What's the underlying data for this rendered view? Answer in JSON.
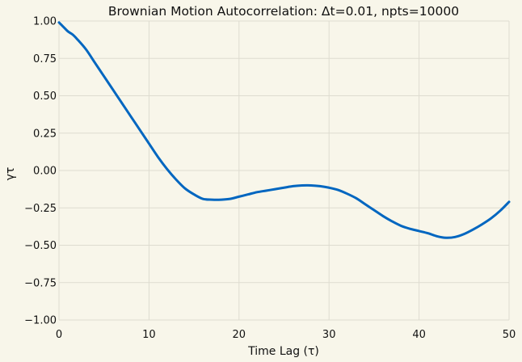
{
  "chart_data": {
    "type": "line",
    "title": "Brownian Motion Autocorrelation: Δt=0.01, npts=10000",
    "xlabel": "Time Lag (τ)",
    "ylabel": "γτ",
    "xlim": [
      0,
      50
    ],
    "ylim": [
      -1.0,
      1.0
    ],
    "x_ticks": [
      0,
      10,
      20,
      30,
      40,
      50
    ],
    "x_tick_labels": [
      "0",
      "10",
      "20",
      "30",
      "40",
      "50"
    ],
    "y_ticks": [
      1.0,
      0.75,
      0.5,
      0.25,
      0.0,
      -0.25,
      -0.5,
      -0.75,
      -1.0
    ],
    "y_tick_labels": [
      "1.00",
      "0.75",
      "0.50",
      "0.25",
      "0.00",
      "−0.25",
      "−0.50",
      "−0.75",
      "−1.00"
    ],
    "grid": true,
    "legend": "none",
    "colors": {
      "background": "#f8f6ea",
      "grid": "#dedcd0",
      "line": "#0066c0"
    },
    "series": [
      {
        "x": [
          0,
          0.5,
          1,
          1.5,
          2,
          3,
          4,
          5,
          6,
          7,
          8,
          9,
          10,
          11,
          12,
          13,
          14,
          15,
          16,
          17,
          18,
          19,
          20,
          21,
          22,
          23,
          24,
          25,
          26,
          27,
          28,
          29,
          30,
          31,
          32,
          33,
          34,
          35,
          36,
          37,
          38,
          39,
          40,
          41,
          42,
          43,
          44,
          45,
          46,
          47,
          48,
          49,
          50
        ],
        "y": [
          0.99,
          0.96,
          0.93,
          0.91,
          0.88,
          0.81,
          0.72,
          0.63,
          0.54,
          0.45,
          0.36,
          0.27,
          0.18,
          0.09,
          0.01,
          -0.06,
          -0.12,
          -0.16,
          -0.19,
          -0.195,
          -0.195,
          -0.19,
          -0.175,
          -0.16,
          -0.145,
          -0.135,
          -0.125,
          -0.115,
          -0.105,
          -0.1,
          -0.1,
          -0.105,
          -0.115,
          -0.13,
          -0.155,
          -0.185,
          -0.225,
          -0.265,
          -0.305,
          -0.34,
          -0.37,
          -0.39,
          -0.405,
          -0.42,
          -0.44,
          -0.45,
          -0.445,
          -0.425,
          -0.395,
          -0.36,
          -0.32,
          -0.27,
          -0.21
        ]
      }
    ]
  }
}
